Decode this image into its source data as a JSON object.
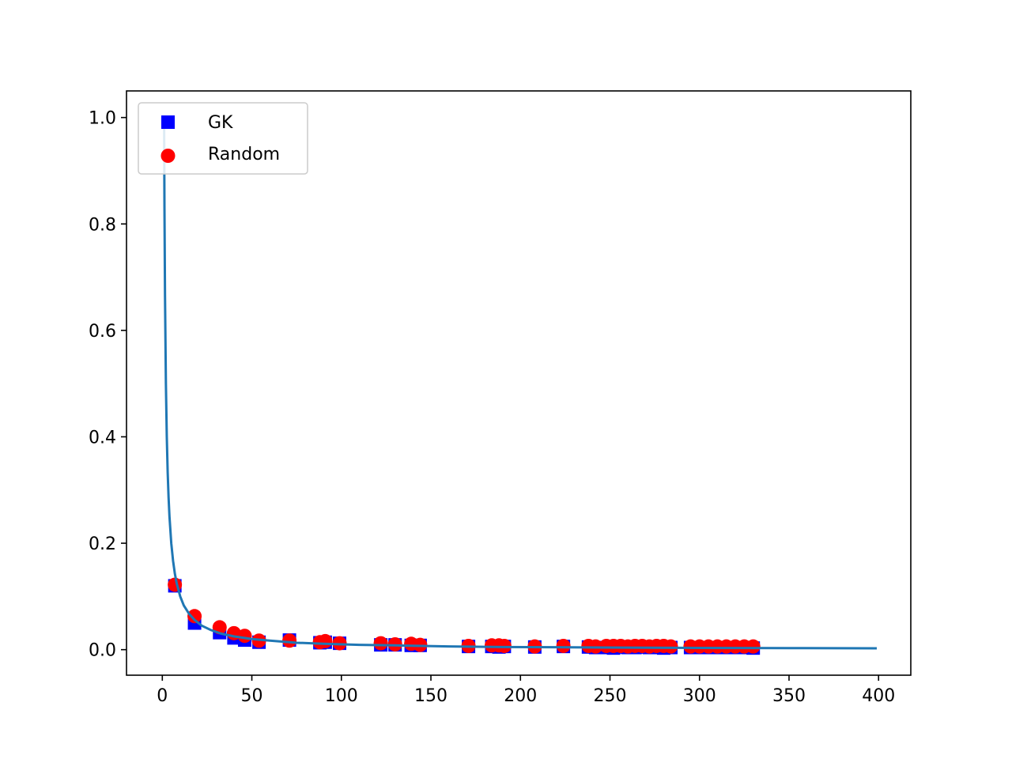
{
  "chart_data": {
    "type": "scatter",
    "title": "",
    "xlabel": "",
    "ylabel": "",
    "xlim": [
      -20,
      418
    ],
    "ylim": [
      -0.048,
      1.05
    ],
    "xticks": [
      0,
      50,
      100,
      150,
      200,
      250,
      300,
      350,
      400
    ],
    "yticks": [
      0.0,
      0.2,
      0.4,
      0.6,
      0.8,
      1.0
    ],
    "xtick_labels": [
      "0",
      "50",
      "100",
      "150",
      "200",
      "250",
      "300",
      "350",
      "400"
    ],
    "ytick_labels": [
      "0.0",
      "0.2",
      "0.4",
      "0.6",
      "0.8",
      "1.0"
    ],
    "grid": false,
    "legend_placement": "top-left",
    "curve": {
      "color": "#1f77b4",
      "x": [
        1,
        1.2,
        1.5,
        2,
        2.5,
        3,
        3.5,
        4,
        5,
        6,
        7,
        8,
        10,
        12,
        15,
        18,
        22,
        27,
        33,
        40,
        50,
        60,
        75,
        90,
        110,
        130,
        160,
        190,
        220,
        260,
        300,
        350,
        399
      ],
      "y": [
        1.0,
        0.833,
        0.667,
        0.5,
        0.4,
        0.333,
        0.286,
        0.25,
        0.2,
        0.167,
        0.143,
        0.125,
        0.1,
        0.083,
        0.067,
        0.056,
        0.045,
        0.037,
        0.03,
        0.025,
        0.02,
        0.017,
        0.013,
        0.011,
        0.009,
        0.008,
        0.006,
        0.005,
        0.0045,
        0.0038,
        0.0033,
        0.0029,
        0.0025
      ]
    },
    "series": [
      {
        "name": "GK",
        "marker": "square",
        "color": "#0000ff",
        "x": [
          7,
          18,
          32,
          40,
          46,
          54,
          71,
          88,
          91,
          99,
          122,
          130,
          139,
          144,
          171,
          184,
          188,
          191,
          208,
          224,
          238,
          242,
          248,
          252,
          256,
          260,
          264,
          268,
          272,
          276,
          280,
          284,
          295,
          300,
          305,
          310,
          315,
          320,
          325,
          330
        ],
        "y": [
          0.12,
          0.05,
          0.032,
          0.022,
          0.018,
          0.014,
          0.018,
          0.013,
          0.014,
          0.012,
          0.009,
          0.009,
          0.008,
          0.008,
          0.006,
          0.006,
          0.005,
          0.006,
          0.005,
          0.006,
          0.005,
          0.004,
          0.004,
          0.003,
          0.005,
          0.004,
          0.004,
          0.005,
          0.004,
          0.004,
          0.003,
          0.004,
          0.004,
          0.004,
          0.004,
          0.004,
          0.004,
          0.004,
          0.004,
          0.003
        ]
      },
      {
        "name": "Random",
        "marker": "circle",
        "color": "#ff0000",
        "x": [
          7,
          18,
          32,
          40,
          46,
          54,
          71,
          88,
          91,
          99,
          122,
          130,
          139,
          144,
          171,
          184,
          188,
          191,
          208,
          224,
          238,
          242,
          248,
          252,
          256,
          260,
          264,
          268,
          272,
          276,
          280,
          284,
          295,
          300,
          305,
          310,
          315,
          320,
          325,
          330
        ],
        "y": [
          0.122,
          0.063,
          0.042,
          0.031,
          0.026,
          0.017,
          0.017,
          0.014,
          0.016,
          0.012,
          0.012,
          0.01,
          0.011,
          0.009,
          0.007,
          0.008,
          0.008,
          0.007,
          0.006,
          0.007,
          0.007,
          0.006,
          0.007,
          0.007,
          0.007,
          0.006,
          0.007,
          0.007,
          0.006,
          0.007,
          0.007,
          0.006,
          0.006,
          0.006,
          0.006,
          0.006,
          0.006,
          0.006,
          0.006,
          0.006
        ]
      }
    ]
  }
}
